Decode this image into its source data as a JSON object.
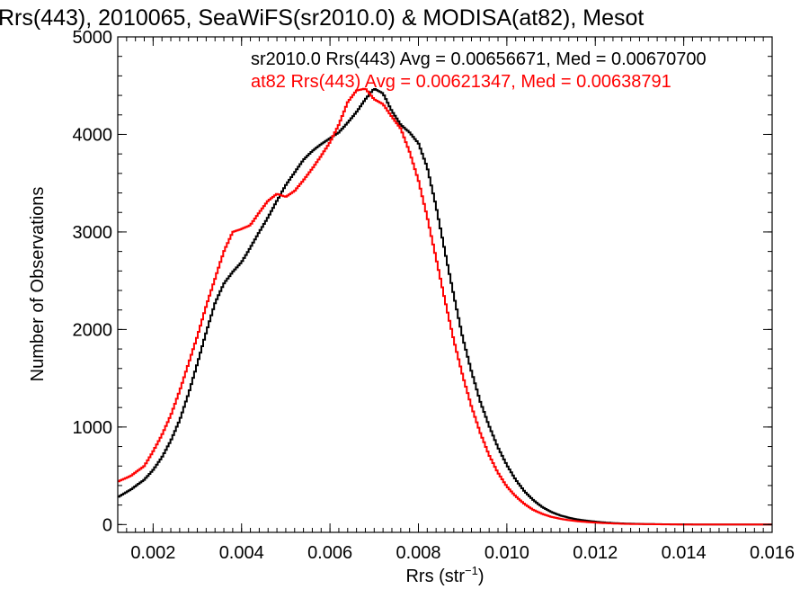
{
  "chart_data": {
    "type": "line",
    "step": true,
    "title": "Rrs(443), 2010065, SeaWiFS(sr2010.0) & MODISA(at82), Mesot",
    "xlabel": "Rrs (str",
    "xlabel_sup": "−1",
    "xlabel_close": ")",
    "ylabel": "Number of Observations",
    "xlim": [
      0.0012,
      0.016
    ],
    "ylim": [
      -80,
      5000
    ],
    "xticks": [
      "0.002",
      "0.004",
      "0.006",
      "0.008",
      "0.010",
      "0.012",
      "0.014",
      "0.016"
    ],
    "yticks": [
      "0",
      "1000",
      "2000",
      "3000",
      "4000",
      "5000"
    ],
    "grid": false,
    "legend_position": "top-right, inside plot",
    "legend": [
      "sr2010.0 Rrs(443) Avg = 0.00656671, Med = 0.00670700",
      "at82 Rrs(443) Avg = 0.00621347, Med = 0.00638791"
    ],
    "series": [
      {
        "name": "sr2010.0",
        "color": "#000000",
        "x": [
          0.0012,
          0.0015,
          0.0018,
          0.002,
          0.0022,
          0.0024,
          0.0026,
          0.0028,
          0.003,
          0.0032,
          0.0034,
          0.0036,
          0.0038,
          0.004,
          0.0042,
          0.0044,
          0.0046,
          0.0048,
          0.005,
          0.0052,
          0.0054,
          0.0056,
          0.0058,
          0.006,
          0.0062,
          0.0064,
          0.0066,
          0.0068,
          0.007,
          0.0072,
          0.0074,
          0.0076,
          0.0078,
          0.008,
          0.0082,
          0.0084,
          0.0086,
          0.0088,
          0.009,
          0.0092,
          0.0094,
          0.0096,
          0.0098,
          0.01,
          0.0102,
          0.0104,
          0.0106,
          0.0108,
          0.011,
          0.0112,
          0.0114,
          0.0116,
          0.0118,
          0.012,
          0.0122,
          0.0124,
          0.0126,
          0.0128,
          0.013,
          0.0132,
          0.0134,
          0.0136,
          0.0138,
          0.014,
          0.0145,
          0.015,
          0.016
        ],
        "y": [
          280,
          360,
          460,
          560,
          690,
          860,
          1070,
          1340,
          1650,
          1970,
          2270,
          2470,
          2590,
          2690,
          2840,
          3000,
          3150,
          3320,
          3480,
          3610,
          3740,
          3830,
          3900,
          3960,
          4020,
          4120,
          4230,
          4360,
          4470,
          4420,
          4240,
          4100,
          4020,
          3910,
          3660,
          3260,
          2800,
          2350,
          1920,
          1570,
          1260,
          1010,
          790,
          610,
          460,
          340,
          250,
          180,
          130,
          95,
          70,
          52,
          40,
          30,
          22,
          16,
          12,
          9,
          7,
          5,
          4,
          3,
          2,
          2,
          1,
          0,
          0
        ]
      },
      {
        "name": "at82",
        "color": "#ff0000",
        "x": [
          0.0012,
          0.0015,
          0.0018,
          0.002,
          0.0022,
          0.0024,
          0.0026,
          0.0028,
          0.003,
          0.0032,
          0.0034,
          0.0036,
          0.0038,
          0.004,
          0.0042,
          0.0044,
          0.0046,
          0.0048,
          0.005,
          0.0052,
          0.0054,
          0.0056,
          0.0058,
          0.006,
          0.0062,
          0.0064,
          0.0066,
          0.0068,
          0.007,
          0.0072,
          0.0074,
          0.0076,
          0.0078,
          0.008,
          0.0082,
          0.0084,
          0.0086,
          0.0088,
          0.009,
          0.0092,
          0.0094,
          0.0096,
          0.0098,
          0.01,
          0.0102,
          0.0104,
          0.0106,
          0.0108,
          0.011,
          0.0112,
          0.0114,
          0.0116,
          0.0118,
          0.012,
          0.0122,
          0.0124,
          0.0126,
          0.0128,
          0.013,
          0.0132,
          0.0134,
          0.0136,
          0.0138,
          0.014,
          0.0145,
          0.015,
          0.016
        ],
        "y": [
          440,
          500,
          600,
          750,
          920,
          1120,
          1370,
          1650,
          1930,
          2240,
          2520,
          2800,
          3000,
          3030,
          3070,
          3200,
          3320,
          3390,
          3360,
          3420,
          3530,
          3650,
          3780,
          3920,
          4100,
          4330,
          4450,
          4470,
          4360,
          4310,
          4180,
          4060,
          3820,
          3530,
          3150,
          2730,
          2300,
          1890,
          1530,
          1210,
          940,
          710,
          530,
          390,
          290,
          210,
          150,
          110,
          80,
          60,
          45,
          34,
          26,
          20,
          15,
          11,
          8,
          6,
          5,
          4,
          3,
          2,
          2,
          1,
          1,
          0,
          0
        ]
      }
    ]
  }
}
